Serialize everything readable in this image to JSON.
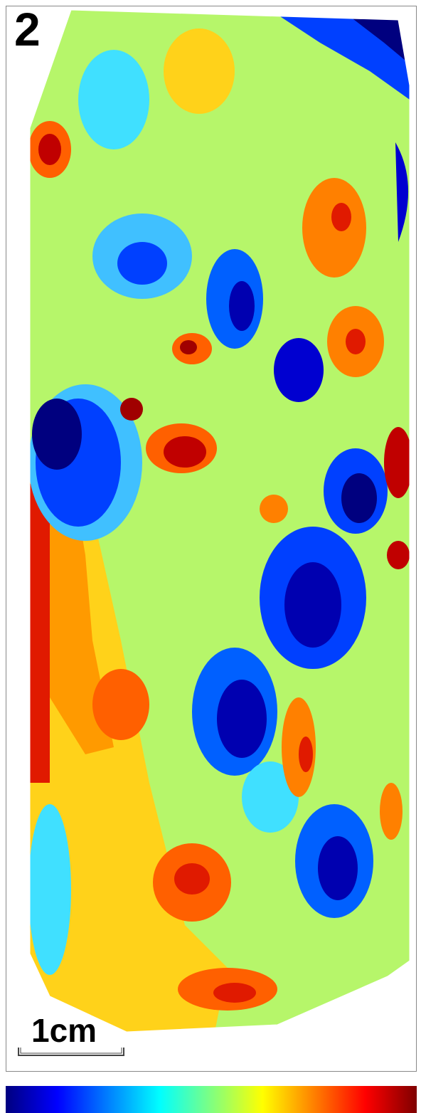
{
  "panel": {
    "number": "2"
  },
  "scale": {
    "label": "1cm"
  },
  "colormap": {
    "name": "jet",
    "stops": [
      "#00007f",
      "#0000ff",
      "#0080ff",
      "#00ffff",
      "#80ff80",
      "#ffff00",
      "#ff8000",
      "#ff0000",
      "#7f0000"
    ]
  }
}
